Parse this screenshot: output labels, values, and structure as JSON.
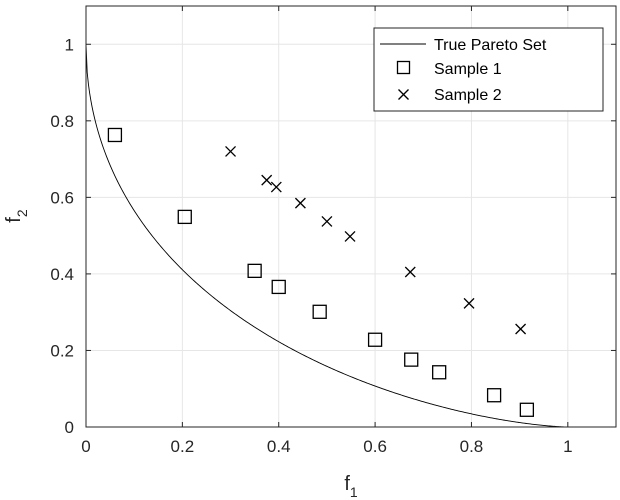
{
  "chart_data": {
    "type": "scatter",
    "title": "",
    "xlabel": {
      "main": "f",
      "sub": "1"
    },
    "ylabel": {
      "main": "f",
      "sub": "2"
    },
    "xlim": [
      0,
      1.1
    ],
    "ylim": [
      0,
      1.1
    ],
    "xticks": [
      0,
      0.2,
      0.4,
      0.6,
      0.8,
      1
    ],
    "yticks": [
      0,
      0.2,
      0.4,
      0.6,
      0.8,
      1
    ],
    "xtick_labels": [
      "0",
      "0.2",
      "0.4",
      "0.6",
      "0.8",
      "1"
    ],
    "ytick_labels": [
      "0",
      "0.2",
      "0.4",
      "0.6",
      "0.8",
      "1"
    ],
    "grid": true,
    "legend_position": "top-right",
    "series": [
      {
        "name": "True Pareto Set",
        "kind": "line",
        "color": "#000000",
        "function": "f2 = (1 - sqrt(f1))^1.5"
      },
      {
        "name": "Sample 1",
        "kind": "markers",
        "marker": "square",
        "color": "#000000",
        "points": [
          [
            0.06,
            0.763
          ],
          [
            0.205,
            0.549
          ],
          [
            0.35,
            0.408
          ],
          [
            0.4,
            0.366
          ],
          [
            0.485,
            0.301
          ],
          [
            0.6,
            0.228
          ],
          [
            0.675,
            0.176
          ],
          [
            0.733,
            0.143
          ],
          [
            0.847,
            0.083
          ],
          [
            0.915,
            0.045
          ]
        ]
      },
      {
        "name": "Sample 2",
        "kind": "markers",
        "marker": "x",
        "color": "#000000",
        "points": [
          [
            0.3,
            0.72
          ],
          [
            0.375,
            0.645
          ],
          [
            0.395,
            0.627
          ],
          [
            0.445,
            0.585
          ],
          [
            0.5,
            0.537
          ],
          [
            0.548,
            0.498
          ],
          [
            0.673,
            0.405
          ],
          [
            0.795,
            0.323
          ],
          [
            0.902,
            0.256
          ]
        ]
      }
    ]
  }
}
